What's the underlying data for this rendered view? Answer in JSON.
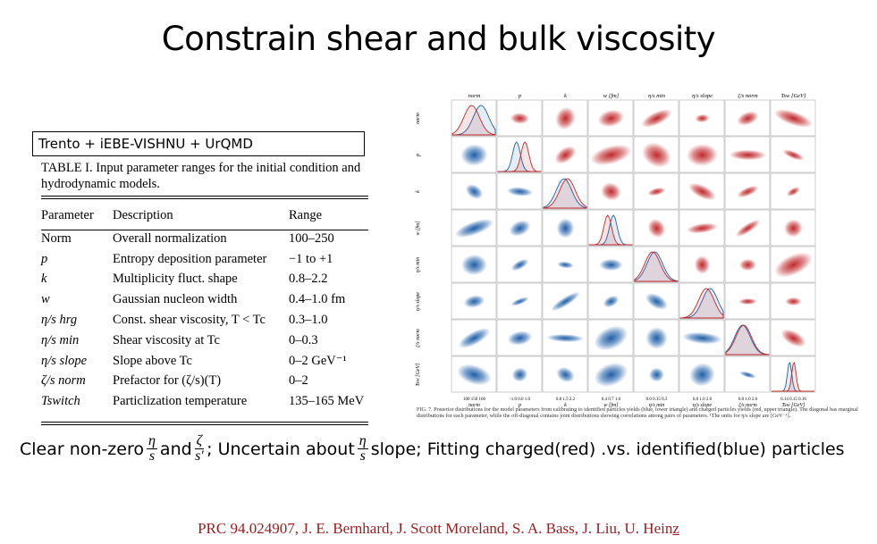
{
  "slide_title": "Constrain shear and bulk viscosity",
  "model_label": "Trento + iEBE-VISHNU + UrQMD",
  "table": {
    "caption": "TABLE I. Input parameter ranges for the initial condition and hydrodynamic models.",
    "headers": [
      "Parameter",
      "Description",
      "Range"
    ],
    "rows": [
      {
        "param": "Norm",
        "desc": "Overall normalization",
        "range": "100–250"
      },
      {
        "param": "p",
        "desc": "Entropy deposition parameter",
        "range": "−1 to +1"
      },
      {
        "param": "k",
        "desc": "Multiplicity fluct. shape",
        "range": "0.8–2.2"
      },
      {
        "param": "w",
        "desc": "Gaussian nucleon width",
        "range": "0.4–1.0 fm"
      },
      {
        "param": "η/s hrg",
        "desc": "Const. shear viscosity, T < Tc",
        "range": "0.3–1.0"
      },
      {
        "param": "η/s min",
        "desc": "Shear viscosity at Tc",
        "range": "0–0.3"
      },
      {
        "param": "η/s slope",
        "desc": "Slope above Tc",
        "range": "0–2 GeV⁻¹"
      },
      {
        "param": "ζ/s norm",
        "desc": "Prefactor for (ζ/s)(T)",
        "range": "0–2"
      },
      {
        "param": "Tswitch",
        "desc": "Particlization temperature",
        "range": "135–165 MeV"
      }
    ]
  },
  "figure": {
    "params": [
      "norm",
      "p",
      "k",
      "w [fm]",
      "η/s min",
      "η/s slope",
      "ζ/s norm",
      "Tsw [GeV]"
    ],
    "row_labels": [
      "norm",
      "p",
      "k",
      "w [fm]",
      "η/s min",
      "η/s slope",
      "ζ/s norm",
      "Tsw [GeV]"
    ],
    "bottom_labels": [
      "norm",
      "p",
      "k",
      "w [fm]",
      "η/s min",
      "η/s slope",
      "ζ/s norm",
      "Tsw [GeV]"
    ],
    "bottom_ticks": [
      "100  150  160",
      "-1.0  0.0  1.0",
      "0.8  1.5  2.2",
      "0.4  0.7  1.0",
      "0.0  0.15  0.3",
      "0.0  1.0  2.0",
      "0.0  1.0  2.0",
      "0.14  0.15  0.16"
    ],
    "caption": "FIG. 7. Posterior distributions for the model parameters from calibrating to identified particles yields (blue, lower triangle) and charged particles yields (red, upper triangle). The diagonal has marginal distributions for each parameter, while the off-diagonal contains joint distributions showing correlations among pairs of parameters. ¹The units for η/s slope are [GeV⁻¹].",
    "colors": {
      "blue": "#1f5fa8",
      "red": "#c0282b"
    }
  },
  "conclusion": {
    "part1": "Clear non-zero",
    "frac1_num": "η",
    "frac1_den": "s",
    "and": "and",
    "frac2_num": "ζ",
    "frac2_den": "s'",
    "part2": "; Uncertain about",
    "frac3_num": "η",
    "frac3_den": "s",
    "part3": "slope; Fitting charged(red) .vs. identified(blue) particles"
  },
  "citation": {
    "text": "PRC 94.024907,   J. E. Bernhard, J. Scott Moreland, S. A. Bass, J. Liu, U. Hein",
    "last_letter": "z"
  }
}
